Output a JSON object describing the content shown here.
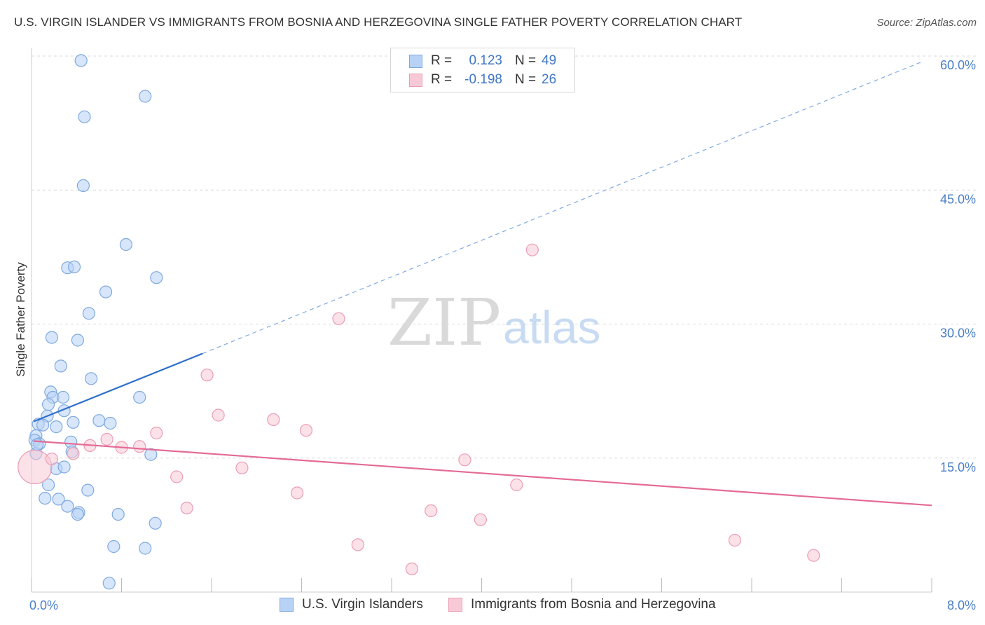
{
  "title": "U.S. VIRGIN ISLANDER VS IMMIGRANTS FROM BOSNIA AND HERZEGOVINA SINGLE FATHER POVERTY CORRELATION CHART",
  "source": "Source: ZipAtlas.com",
  "watermark": {
    "zip": "ZIP",
    "atlas": "atlas"
  },
  "legend": {
    "rows": [
      {
        "r_label": "R =",
        "r_value": "0.123",
        "n_label": "N =",
        "n_value": "49"
      },
      {
        "r_label": "R =",
        "r_value": "-0.198",
        "n_label": "N =",
        "n_value": "26"
      }
    ]
  },
  "colors": {
    "blue_fill": "#b7d2f5",
    "blue_stroke": "#7fa9df",
    "blue_line": "#2e6fcc",
    "pink_fill": "#f7c9d6",
    "pink_stroke": "#eb9db3",
    "pink_line": "#e46b96",
    "grid": "#d9d9d9",
    "tick_text": "#4a7fc8"
  },
  "chart_data": {
    "type": "scatter",
    "title": "U.S. VIRGIN ISLANDER VS IMMIGRANTS FROM BOSNIA AND HERZEGOVINA SINGLE FATHER POVERTY CORRELATION CHART",
    "xlabel": "",
    "ylabel": "Single Father Poverty",
    "xlim": [
      0,
      8
    ],
    "ylim": [
      0,
      60
    ],
    "x_tick_labels": [
      "0.0%",
      "8.0%"
    ],
    "y_ticks": [
      15,
      30,
      45,
      60
    ],
    "y_tick_labels": [
      "15.0%",
      "30.0%",
      "45.0%",
      "60.0%"
    ],
    "grid": true,
    "legend_position": "top-center",
    "series": [
      {
        "name": "U.S. Virgin Islanders",
        "color": "#b7d2f5",
        "points": [
          [
            0.44,
            59.5
          ],
          [
            1.01,
            55.5
          ],
          [
            0.47,
            53.2
          ],
          [
            0.46,
            45.5
          ],
          [
            0.84,
            38.9
          ],
          [
            1.11,
            35.2
          ],
          [
            0.32,
            36.3
          ],
          [
            0.38,
            36.4
          ],
          [
            0.66,
            33.6
          ],
          [
            0.51,
            31.2
          ],
          [
            0.18,
            28.5
          ],
          [
            0.41,
            28.2
          ],
          [
            0.26,
            25.3
          ],
          [
            0.53,
            23.9
          ],
          [
            0.17,
            22.4
          ],
          [
            0.19,
            21.8
          ],
          [
            0.28,
            21.8
          ],
          [
            0.96,
            21.8
          ],
          [
            0.15,
            21.0
          ],
          [
            0.29,
            20.3
          ],
          [
            0.14,
            19.7
          ],
          [
            0.06,
            18.8
          ],
          [
            0.1,
            18.7
          ],
          [
            0.22,
            18.5
          ],
          [
            0.37,
            19.0
          ],
          [
            0.6,
            19.2
          ],
          [
            0.7,
            18.9
          ],
          [
            0.04,
            17.5
          ],
          [
            0.03,
            17.0
          ],
          [
            0.07,
            16.6
          ],
          [
            0.35,
            16.8
          ],
          [
            0.04,
            15.5
          ],
          [
            0.36,
            15.7
          ],
          [
            1.06,
            15.4
          ],
          [
            0.22,
            13.8
          ],
          [
            0.29,
            14.0
          ],
          [
            0.15,
            12.0
          ],
          [
            0.5,
            11.4
          ],
          [
            0.12,
            10.5
          ],
          [
            0.24,
            10.4
          ],
          [
            0.32,
            9.6
          ],
          [
            0.42,
            8.9
          ],
          [
            0.41,
            8.7
          ],
          [
            0.77,
            8.7
          ],
          [
            1.1,
            7.7
          ],
          [
            0.73,
            5.1
          ],
          [
            1.01,
            4.9
          ],
          [
            0.69,
            1.0
          ],
          [
            0.05,
            16.5
          ]
        ]
      },
      {
        "name": "Immigrants from Bosnia and Herzegovina",
        "color": "#f7c9d6",
        "points": [
          [
            0.03,
            14.0
          ],
          [
            0.37,
            15.5
          ],
          [
            0.52,
            16.4
          ],
          [
            0.67,
            17.1
          ],
          [
            0.8,
            16.2
          ],
          [
            0.96,
            16.3
          ],
          [
            1.11,
            17.8
          ],
          [
            0.18,
            14.9
          ],
          [
            1.29,
            12.9
          ],
          [
            1.38,
            9.4
          ],
          [
            1.56,
            24.3
          ],
          [
            1.66,
            19.8
          ],
          [
            1.87,
            13.9
          ],
          [
            2.15,
            19.3
          ],
          [
            2.36,
            11.1
          ],
          [
            2.44,
            18.1
          ],
          [
            2.73,
            30.6
          ],
          [
            2.9,
            5.3
          ],
          [
            3.38,
            2.6
          ],
          [
            3.55,
            9.1
          ],
          [
            3.85,
            14.8
          ],
          [
            3.99,
            8.1
          ],
          [
            4.31,
            12.0
          ],
          [
            4.45,
            38.3
          ],
          [
            6.25,
            5.8
          ],
          [
            6.95,
            4.1
          ]
        ]
      }
    ],
    "trend_lines": [
      {
        "series": "U.S. Virgin Islanders",
        "x": [
          0.02,
          1.52
        ],
        "y": [
          19.1,
          26.7
        ],
        "dashed_extension_x": [
          1.52,
          7.9
        ],
        "dashed_extension_y": [
          26.7,
          59.3
        ]
      },
      {
        "series": "Immigrants from Bosnia and Herzegovina",
        "x": [
          0.02,
          8.0
        ],
        "y": [
          16.9,
          9.7
        ]
      }
    ]
  }
}
